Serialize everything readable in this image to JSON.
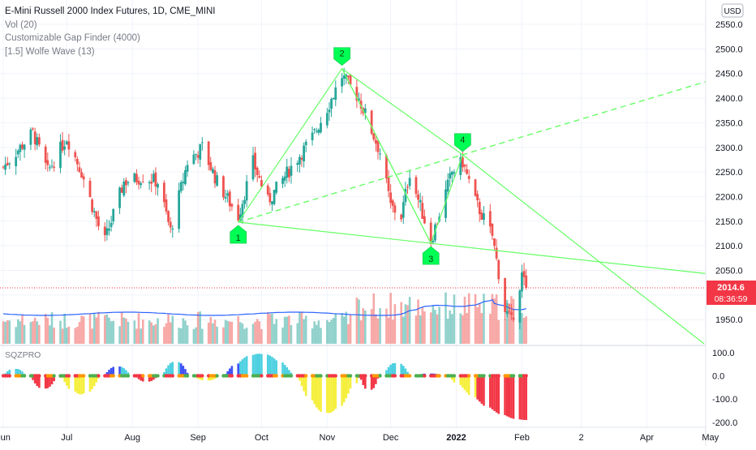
{
  "legend": {
    "title": "E-Mini Russell 2000 Index Futures, 1D, CME_MINI",
    "vol": "Vol (20)",
    "gap": "Customizable Gap Finder (4000)",
    "wolfe": "[1.5] Wolfe Wave (13)"
  },
  "currency": "USD",
  "price_tag": {
    "value": "2014.6",
    "countdown": "08:36:59",
    "color": "#f23645"
  },
  "colors": {
    "up": "#26a69a",
    "down": "#ef5350",
    "wolfe": "#66ff66",
    "ma": "#2962ff",
    "sqz_light_blue": "#4dd0e1",
    "sqz_blue": "#3f51f5",
    "sqz_red": "#f23645",
    "sqz_yellow": "#f5ef3d"
  },
  "sqz": {
    "label": "SQZPRO",
    "ticks": [
      "100.0",
      "0.0",
      "-100.0",
      "-200.0"
    ]
  },
  "x_labels": [
    "Jun",
    "Jul",
    "Aug",
    "Sep",
    "Oct",
    "Nov",
    "Dec",
    "2022",
    "Feb",
    "2",
    "Apr",
    "May"
  ],
  "wolfe_points": [
    "1",
    "2",
    "3",
    "4"
  ],
  "chart_data": {
    "type": "candlestick",
    "title": "E-Mini Russell 2000 Index Futures, 1D, CME_MINI",
    "ylim": [
      1900,
      2580
    ],
    "y_ticks": [
      1950,
      2000,
      2050,
      2100,
      2150,
      2200,
      2250,
      2300,
      2350,
      2400,
      2450,
      2500,
      2550
    ],
    "last_price": 2014.6,
    "price_path_anchors": [
      {
        "date": "2021-06-01",
        "close": 2260
      },
      {
        "date": "2021-06-15",
        "close": 2330
      },
      {
        "date": "2021-06-22",
        "close": 2250
      },
      {
        "date": "2021-07-01",
        "close": 2320
      },
      {
        "date": "2021-07-08",
        "close": 2250
      },
      {
        "date": "2021-07-16",
        "close": 2140
      },
      {
        "date": "2021-07-19",
        "close": 2110
      },
      {
        "date": "2021-07-28",
        "close": 2230
      },
      {
        "date": "2021-08-06",
        "close": 2240
      },
      {
        "date": "2021-08-13",
        "close": 2230
      },
      {
        "date": "2021-08-19",
        "close": 2130
      },
      {
        "date": "2021-08-27",
        "close": 2270
      },
      {
        "date": "2021-09-03",
        "close": 2300
      },
      {
        "date": "2021-09-10",
        "close": 2230
      },
      {
        "date": "2021-09-20",
        "close": 2160
      },
      {
        "date": "2021-09-27",
        "close": 2270
      },
      {
        "date": "2021-10-04",
        "close": 2190
      },
      {
        "date": "2021-10-15",
        "close": 2260
      },
      {
        "date": "2021-10-25",
        "close": 2320
      },
      {
        "date": "2021-11-01",
        "close": 2380
      },
      {
        "date": "2021-11-08",
        "close": 2445
      },
      {
        "date": "2021-11-16",
        "close": 2400
      },
      {
        "date": "2021-11-26",
        "close": 2290
      },
      {
        "date": "2021-12-01",
        "close": 2180
      },
      {
        "date": "2021-12-06",
        "close": 2160
      },
      {
        "date": "2021-12-10",
        "close": 2250
      },
      {
        "date": "2021-12-20",
        "close": 2110
      },
      {
        "date": "2021-12-30",
        "close": 2250
      },
      {
        "date": "2022-01-04",
        "close": 2270
      },
      {
        "date": "2022-01-10",
        "close": 2190
      },
      {
        "date": "2022-01-18",
        "close": 2120
      },
      {
        "date": "2022-01-24",
        "close": 1970
      },
      {
        "date": "2022-01-27",
        "close": 1945
      },
      {
        "date": "2022-02-01",
        "close": 2040
      },
      {
        "date": "2022-02-03",
        "close": 2014.6
      }
    ],
    "wolfe_wave": [
      {
        "label": "1",
        "date": "2021-09-20",
        "price": 2148
      },
      {
        "label": "2",
        "date": "2021-11-08",
        "price": 2460
      },
      {
        "label": "3",
        "date": "2021-12-20",
        "price": 2105
      },
      {
        "label": "4",
        "date": "2022-01-04",
        "price": 2285
      }
    ],
    "sqz_ylim": [
      -210,
      120
    ]
  }
}
